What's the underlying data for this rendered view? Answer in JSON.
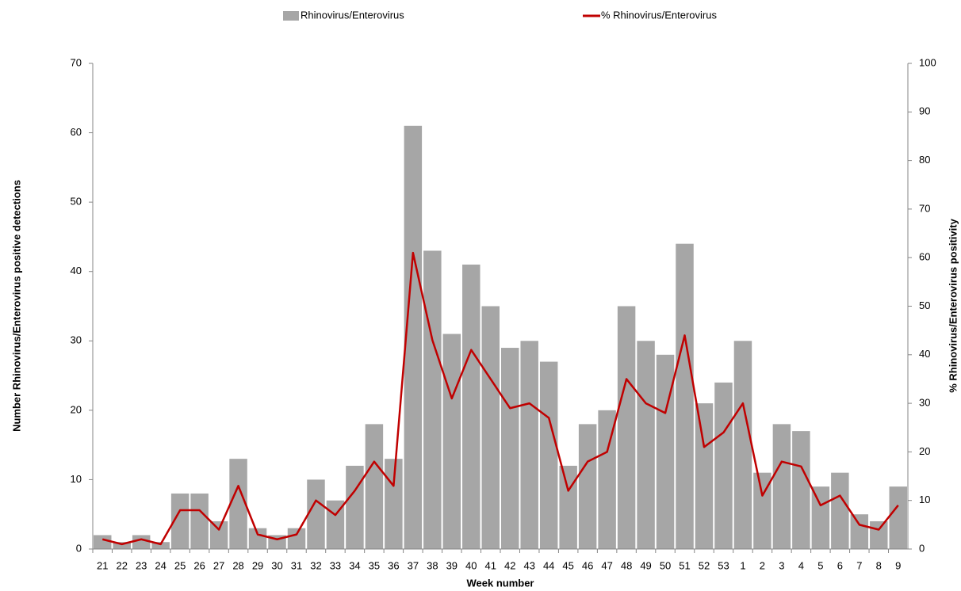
{
  "chart_data": {
    "type": "bar-line",
    "x_label": "Week number",
    "y_label": "Number Rhinovirus/Enterovirus positive detections",
    "y2_label": "% Rhinovirus/Enterovirus positivity",
    "categories": [
      "21",
      "22",
      "23",
      "24",
      "25",
      "26",
      "27",
      "28",
      "29",
      "30",
      "31",
      "32",
      "33",
      "34",
      "35",
      "36",
      "37",
      "38",
      "39",
      "40",
      "41",
      "42",
      "43",
      "44",
      "45",
      "46",
      "47",
      "48",
      "49",
      "50",
      "51",
      "52",
      "53",
      "1",
      "2",
      "3",
      "4",
      "5",
      "6",
      "7",
      "8",
      "9"
    ],
    "series": [
      {
        "name": "Rhinovirus/Enterovirus",
        "type": "bar",
        "color": "#a6a6a6",
        "axis": "y",
        "values": [
          2,
          1,
          2,
          1,
          8,
          8,
          4,
          13,
          3,
          2,
          3,
          10,
          7,
          12,
          18,
          13,
          61,
          43,
          31,
          41,
          35,
          29,
          30,
          27,
          12,
          18,
          20,
          35,
          30,
          28,
          44,
          21,
          24,
          30,
          11,
          18,
          17,
          9,
          11,
          5,
          4,
          9
        ]
      },
      {
        "name": "% Rhinovirus/Enterovirus",
        "type": "line",
        "color": "#c00000",
        "axis": "y2",
        "values": [
          2,
          1,
          2,
          1,
          8,
          8,
          4,
          13,
          3,
          2,
          3,
          10,
          7,
          12,
          18,
          13,
          61,
          43,
          31,
          41,
          35,
          29,
          30,
          27,
          12,
          18,
          20,
          35,
          30,
          28,
          44,
          21,
          24,
          30,
          11,
          18,
          17,
          9,
          11,
          5,
          4,
          9
        ]
      }
    ],
    "ylim": [
      0,
      70
    ],
    "yticks": [
      0,
      10,
      20,
      30,
      40,
      50,
      60,
      70
    ],
    "y2lim": [
      0,
      100
    ],
    "y2ticks": [
      0,
      10,
      20,
      30,
      40,
      50,
      60,
      70,
      80,
      90,
      100
    ],
    "grid": false,
    "legend": "top"
  }
}
